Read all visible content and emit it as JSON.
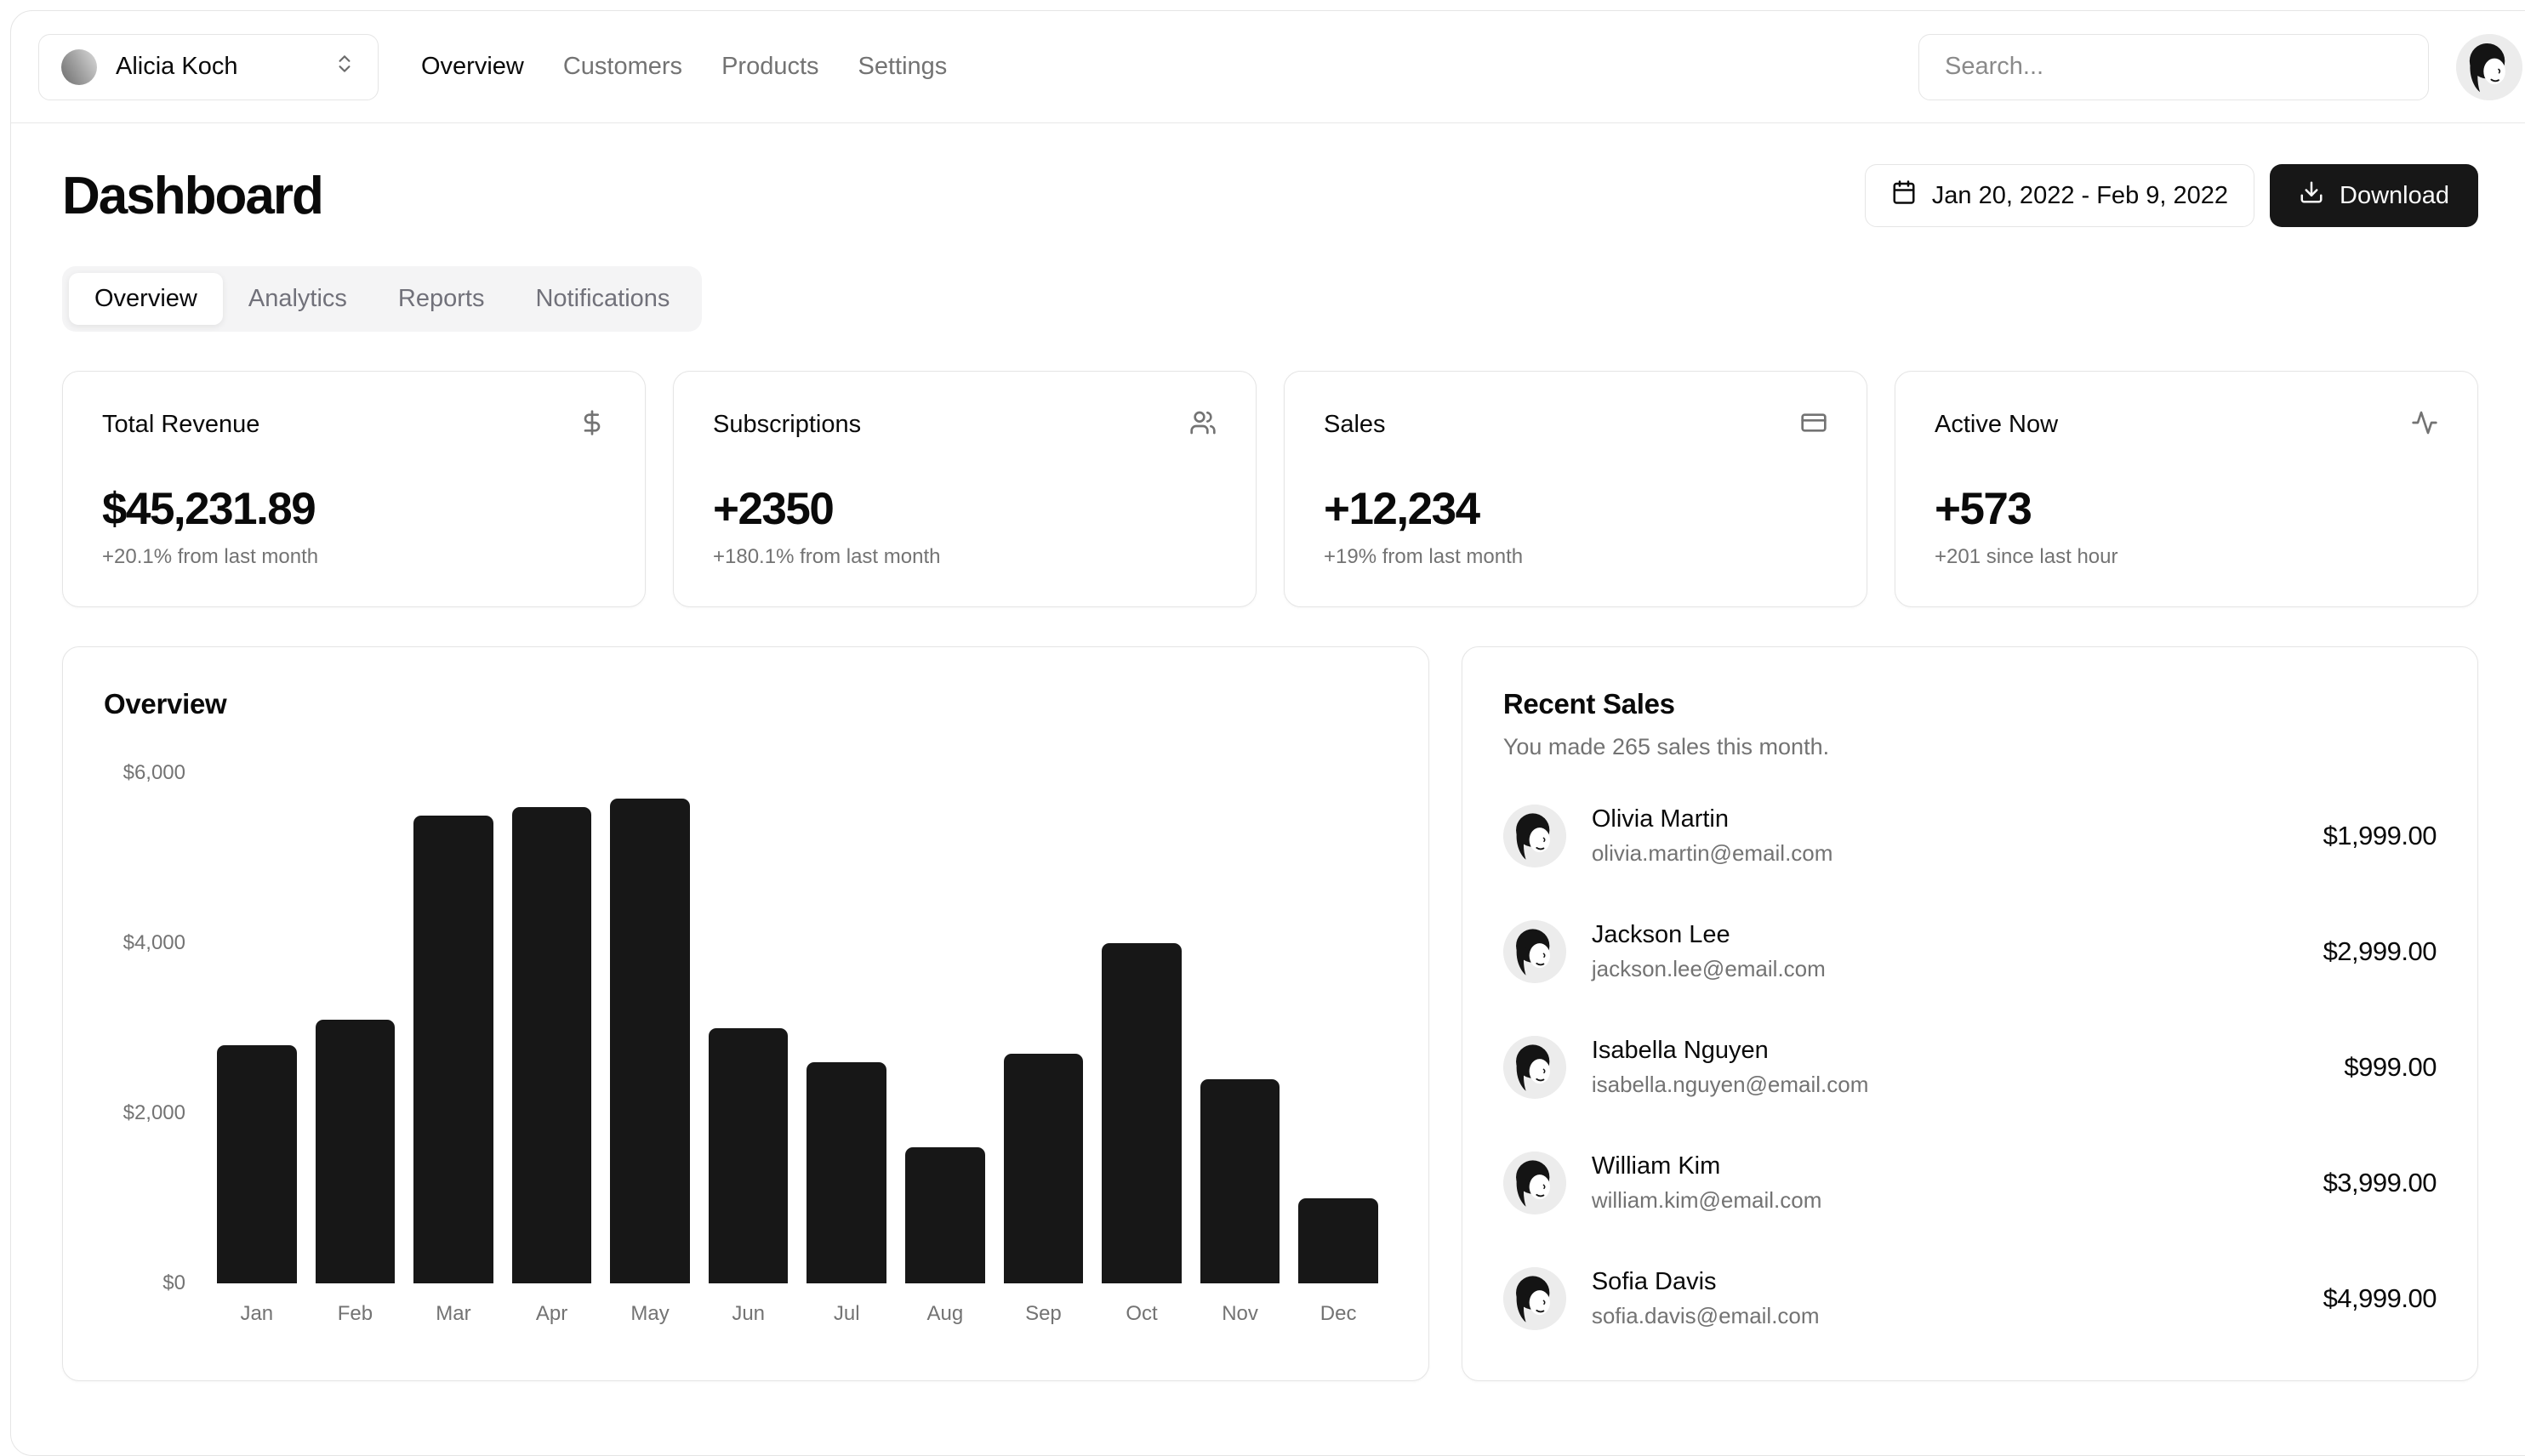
{
  "header": {
    "team_name": "Alicia Koch",
    "nav": [
      "Overview",
      "Customers",
      "Products",
      "Settings"
    ],
    "search_placeholder": "Search..."
  },
  "page": {
    "title": "Dashboard",
    "date_range": "Jan 20, 2022 - Feb 9, 2022",
    "download_label": "Download"
  },
  "tabs": {
    "items": [
      "Overview",
      "Analytics",
      "Reports",
      "Notifications"
    ],
    "active": "Overview"
  },
  "stats": [
    {
      "title": "Total Revenue",
      "icon": "dollar-sign-icon",
      "value": "$45,231.89",
      "change": "+20.1% from last month"
    },
    {
      "title": "Subscriptions",
      "icon": "users-icon",
      "value": "+2350",
      "change": "+180.1% from last month"
    },
    {
      "title": "Sales",
      "icon": "credit-card-icon",
      "value": "+12,234",
      "change": "+19% from last month"
    },
    {
      "title": "Active Now",
      "icon": "activity-icon",
      "value": "+573",
      "change": "+201 since last hour"
    }
  ],
  "chart_data": {
    "type": "bar",
    "title": "Overview",
    "categories": [
      "Jan",
      "Feb",
      "Mar",
      "Apr",
      "May",
      "Jun",
      "Jul",
      "Aug",
      "Sep",
      "Oct",
      "Nov",
      "Dec"
    ],
    "values": [
      2800,
      3100,
      5500,
      5600,
      5700,
      3000,
      2600,
      1600,
      2700,
      4000,
      2400,
      1000
    ],
    "xlabel": "",
    "ylabel": "",
    "ylim": [
      0,
      6000
    ],
    "ytick_labels": [
      "$0",
      "$2,000",
      "$4,000",
      "$6,000"
    ],
    "grid": false,
    "legend": "none",
    "bar_color": "#171717"
  },
  "recent_sales": {
    "title": "Recent Sales",
    "subtitle": "You made 265 sales this month.",
    "sales": [
      {
        "name": "Olivia Martin",
        "email": "olivia.martin@email.com",
        "amount": "$1,999.00"
      },
      {
        "name": "Jackson Lee",
        "email": "jackson.lee@email.com",
        "amount": "$2,999.00"
      },
      {
        "name": "Isabella Nguyen",
        "email": "isabella.nguyen@email.com",
        "amount": "$999.00"
      },
      {
        "name": "William Kim",
        "email": "william.kim@email.com",
        "amount": "$3,999.00"
      },
      {
        "name": "Sofia Davis",
        "email": "sofia.davis@email.com",
        "amount": "$4,999.00"
      }
    ]
  },
  "colors": {
    "accent": "#171717",
    "border": "#e5e5e5",
    "muted": "#737373",
    "tab_background": "#f4f4f5"
  }
}
